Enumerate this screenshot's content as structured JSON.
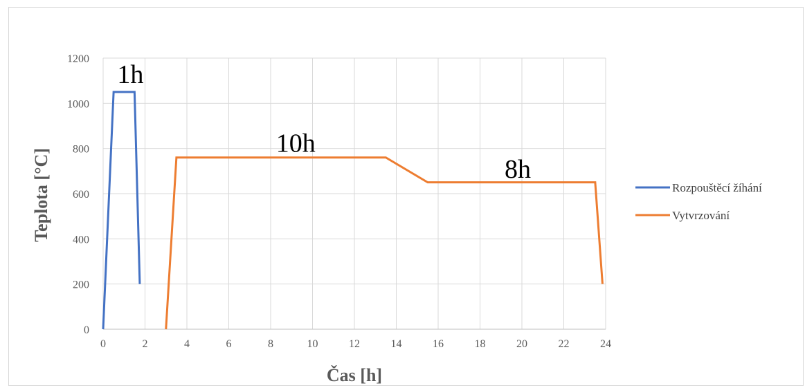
{
  "chart_data": {
    "type": "line",
    "title": "",
    "xlabel": "Čas [h]",
    "ylabel": "Teplota [°C]",
    "xlim": [
      0,
      24
    ],
    "ylim": [
      0,
      1200
    ],
    "xticks": [
      0,
      2,
      4,
      6,
      8,
      10,
      12,
      14,
      16,
      18,
      20,
      22,
      24
    ],
    "yticks": [
      0,
      200,
      400,
      600,
      800,
      1000,
      1200
    ],
    "grid": true,
    "legend_position": "right",
    "series": [
      {
        "name": "Rozpouštěcí žíhání",
        "color": "#4472c4",
        "points": [
          [
            0,
            0
          ],
          [
            0.5,
            1050
          ],
          [
            1.5,
            1050
          ],
          [
            1.75,
            200
          ]
        ]
      },
      {
        "name": "Vytvrzování",
        "color": "#ed7d31",
        "points": [
          [
            3,
            0
          ],
          [
            3.5,
            760
          ],
          [
            13.5,
            760
          ],
          [
            15.5,
            650
          ],
          [
            23.5,
            650
          ],
          [
            23.85,
            200
          ]
        ]
      }
    ],
    "annotations": [
      {
        "text": "1h",
        "x": 1.3,
        "y": 1090
      },
      {
        "text": "10h",
        "x": 9.2,
        "y": 785
      },
      {
        "text": "8h",
        "x": 19.8,
        "y": 670
      }
    ]
  }
}
